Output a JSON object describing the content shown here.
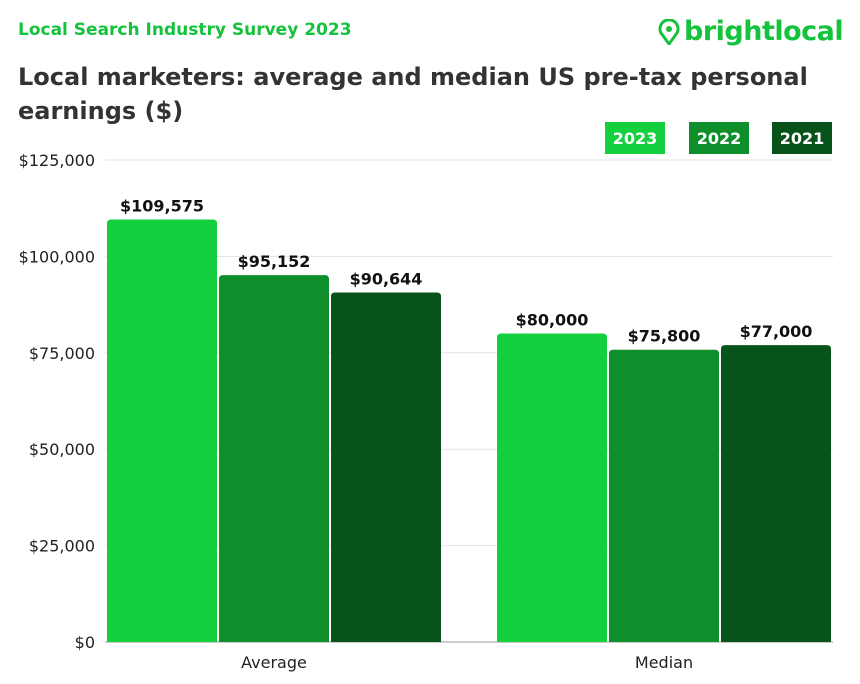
{
  "header": {
    "survey": "Local Search Industry Survey 2023",
    "logo_text": "brightlocal"
  },
  "colors": {
    "2023": "#14d03f",
    "2022": "#0e8f2b",
    "2021": "#07531a",
    "brand": "#14c23c"
  },
  "chart_data": {
    "type": "bar",
    "title": "Local marketers: average and median US pre-tax personal earnings ($)",
    "categories": [
      "Average",
      "Median"
    ],
    "series": [
      {
        "name": "2023",
        "values": [
          109575,
          80000
        ],
        "labels": [
          "$109,575",
          "$80,000"
        ]
      },
      {
        "name": "2022",
        "values": [
          95152,
          75800
        ],
        "labels": [
          "$95,152",
          "$75,800"
        ]
      },
      {
        "name": "2021",
        "values": [
          90644,
          77000
        ],
        "labels": [
          "$90,644",
          "$77,000"
        ]
      }
    ],
    "ylim": [
      0,
      125000
    ],
    "yticks": [
      0,
      25000,
      50000,
      75000,
      100000,
      125000
    ],
    "ytick_labels": [
      "$0",
      "$25,000",
      "$50,000",
      "$75,000",
      "$100,000",
      "$125,000"
    ],
    "grid": true,
    "legend": "top-right"
  }
}
